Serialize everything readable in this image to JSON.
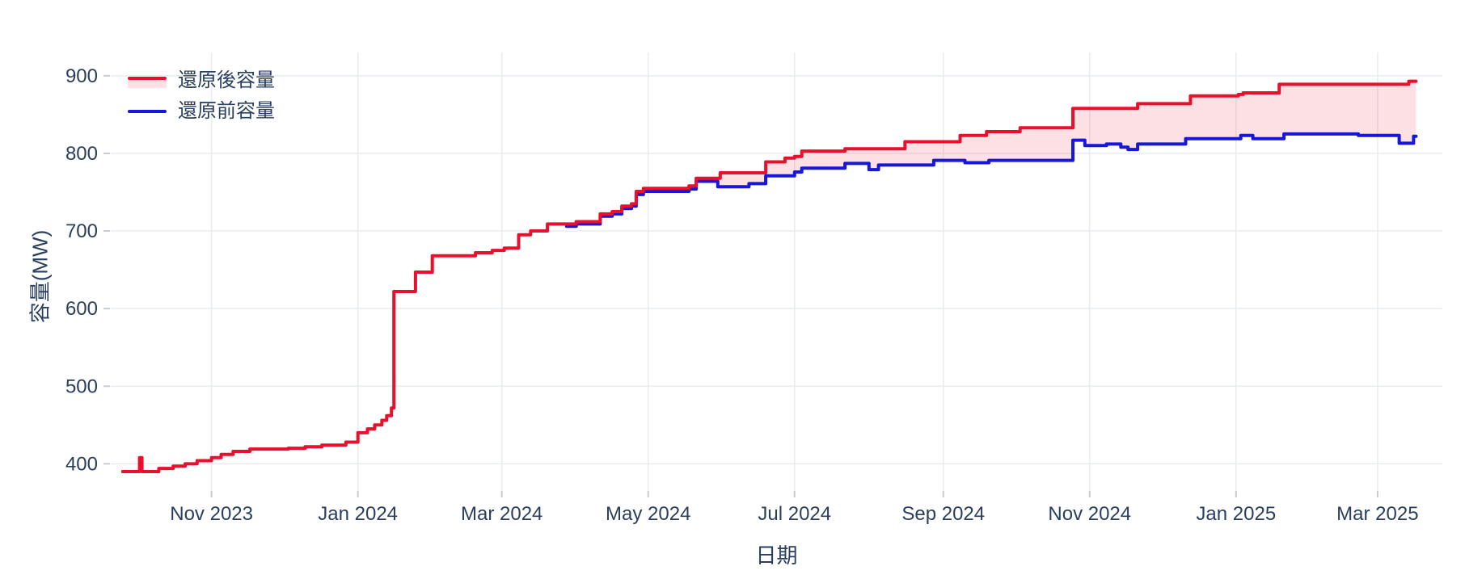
{
  "figure": {
    "background": "#ffffff",
    "text_color": "#2a3f5f",
    "grid_color": "#e8ecf0",
    "tick_color": "#c7ccd1"
  },
  "chart_data": {
    "type": "line",
    "title": "",
    "xlabel": "日期",
    "ylabel": "容量(MW)",
    "line_shape": "step-after",
    "grid": true,
    "legend_position": "top-left",
    "fill_between_series": true,
    "fill_color": "rgba(232,17,45,0.13)",
    "x_range": [
      "2023-09-20",
      "2025-03-28"
    ],
    "y_range": [
      365,
      930
    ],
    "x_tick_dates": [
      "2023-11-01",
      "2024-01-01",
      "2024-03-01",
      "2024-05-01",
      "2024-07-01",
      "2024-09-01",
      "2024-11-01",
      "2025-01-01",
      "2025-03-01"
    ],
    "x_tick_labels": [
      "Nov 2023",
      "Jan 2024",
      "Mar 2024",
      "May 2024",
      "Jul 2024",
      "Sep 2024",
      "Nov 2024",
      "Jan 2025",
      "Mar 2025"
    ],
    "y_ticks": [
      400,
      500,
      600,
      700,
      800,
      900
    ],
    "series": [
      {
        "name": "還原後容量",
        "slug": "after-restoration",
        "color": "#e8112d",
        "points": [
          [
            "2023-09-25",
            390
          ],
          [
            "2023-10-01",
            390
          ],
          [
            "2023-10-02",
            408
          ],
          [
            "2023-10-03",
            390
          ],
          [
            "2023-10-10",
            394
          ],
          [
            "2023-10-16",
            397
          ],
          [
            "2023-10-21",
            400
          ],
          [
            "2023-10-26",
            404
          ],
          [
            "2023-11-01",
            408
          ],
          [
            "2023-11-05",
            412
          ],
          [
            "2023-11-10",
            416
          ],
          [
            "2023-11-17",
            419
          ],
          [
            "2023-12-03",
            420
          ],
          [
            "2023-12-10",
            422
          ],
          [
            "2023-12-17",
            424
          ],
          [
            "2023-12-27",
            428
          ],
          [
            "2024-01-01",
            440
          ],
          [
            "2024-01-05",
            445
          ],
          [
            "2024-01-08",
            450
          ],
          [
            "2024-01-11",
            456
          ],
          [
            "2024-01-13",
            462
          ],
          [
            "2024-01-15",
            472
          ],
          [
            "2024-01-16",
            622
          ],
          [
            "2024-01-25",
            647
          ],
          [
            "2024-02-01",
            668
          ],
          [
            "2024-02-19",
            672
          ],
          [
            "2024-02-26",
            675
          ],
          [
            "2024-03-02",
            678
          ],
          [
            "2024-03-08",
            695
          ],
          [
            "2024-03-13",
            700
          ],
          [
            "2024-03-20",
            709
          ],
          [
            "2024-04-01",
            712
          ],
          [
            "2024-04-11",
            722
          ],
          [
            "2024-04-16",
            725
          ],
          [
            "2024-04-20",
            732
          ],
          [
            "2024-04-24",
            735
          ],
          [
            "2024-04-26",
            751
          ],
          [
            "2024-04-29",
            755
          ],
          [
            "2024-05-18",
            758
          ],
          [
            "2024-05-21",
            768
          ],
          [
            "2024-05-31",
            775
          ],
          [
            "2024-06-19",
            789
          ],
          [
            "2024-06-27",
            794
          ],
          [
            "2024-07-01",
            796
          ],
          [
            "2024-07-04",
            803
          ],
          [
            "2024-07-22",
            806
          ],
          [
            "2024-08-16",
            815
          ],
          [
            "2024-09-08",
            823
          ],
          [
            "2024-09-19",
            828
          ],
          [
            "2024-10-03",
            833
          ],
          [
            "2024-10-25",
            858
          ],
          [
            "2024-11-21",
            864
          ],
          [
            "2024-12-13",
            874
          ],
          [
            "2025-01-02",
            876
          ],
          [
            "2025-01-04",
            878
          ],
          [
            "2025-01-19",
            889
          ],
          [
            "2025-03-14",
            893
          ],
          [
            "2025-03-17",
            893
          ]
        ]
      },
      {
        "name": "還原前容量",
        "slug": "before-restoration",
        "color": "#1717d9",
        "points": [
          [
            "2024-03-28",
            706
          ],
          [
            "2024-04-01",
            709
          ],
          [
            "2024-04-11",
            719
          ],
          [
            "2024-04-16",
            722
          ],
          [
            "2024-04-20",
            729
          ],
          [
            "2024-04-24",
            732
          ],
          [
            "2024-04-26",
            747
          ],
          [
            "2024-04-29",
            751
          ],
          [
            "2024-05-18",
            754
          ],
          [
            "2024-05-21",
            764
          ],
          [
            "2024-05-30",
            757
          ],
          [
            "2024-06-12",
            761
          ],
          [
            "2024-06-19",
            771
          ],
          [
            "2024-07-01",
            776
          ],
          [
            "2024-07-04",
            781
          ],
          [
            "2024-07-22",
            787
          ],
          [
            "2024-08-01",
            779
          ],
          [
            "2024-08-05",
            785
          ],
          [
            "2024-08-28",
            791
          ],
          [
            "2024-09-10",
            788
          ],
          [
            "2024-09-20",
            791
          ],
          [
            "2024-10-25",
            817
          ],
          [
            "2024-10-30",
            810
          ],
          [
            "2024-11-08",
            812
          ],
          [
            "2024-11-14",
            808
          ],
          [
            "2024-11-17",
            805
          ],
          [
            "2024-11-21",
            812
          ],
          [
            "2024-12-11",
            819
          ],
          [
            "2025-01-03",
            823
          ],
          [
            "2025-01-08",
            819
          ],
          [
            "2025-01-21",
            825
          ],
          [
            "2025-02-21",
            823
          ],
          [
            "2025-03-10",
            813
          ],
          [
            "2025-03-16",
            822
          ],
          [
            "2025-03-17",
            822
          ]
        ]
      }
    ]
  }
}
